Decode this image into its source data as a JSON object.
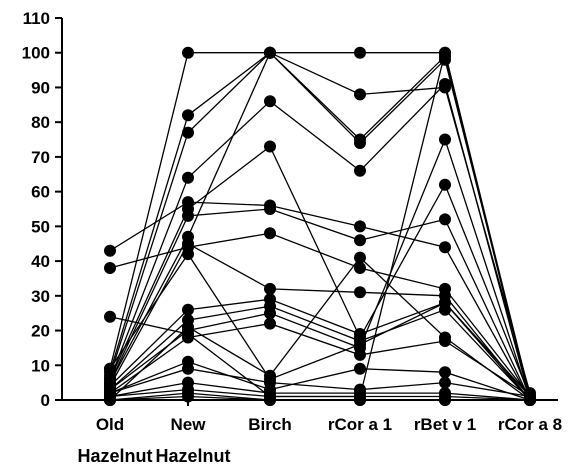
{
  "chart_data": {
    "type": "line",
    "title": "",
    "xlabel": "",
    "ylabel": "",
    "categories": [
      "Old",
      "New",
      "Birch",
      "rCor a 1",
      "rBet v 1",
      "rCor a 8"
    ],
    "category_sublabels": [
      "Hazelnut",
      "Hazelnut",
      "",
      "",
      "",
      ""
    ],
    "ylim": [
      0,
      110
    ],
    "yticks": [
      0,
      10,
      20,
      30,
      40,
      50,
      60,
      70,
      80,
      90,
      100,
      110
    ],
    "grid": false,
    "legend": "none",
    "line_color": "#000000",
    "marker": "filled-circle",
    "series": [
      {
        "values": [
          43,
          57,
          56,
          50,
          44,
          0
        ]
      },
      {
        "values": [
          38,
          44,
          48,
          38,
          32,
          1
        ]
      },
      {
        "values": [
          24,
          19,
          1,
          1,
          100,
          1
        ]
      },
      {
        "values": [
          9,
          100,
          100,
          100,
          100,
          0
        ]
      },
      {
        "values": [
          8,
          82,
          100,
          75,
          99,
          0
        ]
      },
      {
        "values": [
          7,
          77,
          100,
          74,
          98,
          1
        ]
      },
      {
        "values": [
          6,
          64,
          86,
          66,
          91,
          0
        ]
      },
      {
        "values": [
          6,
          55,
          73,
          18,
          62,
          1
        ]
      },
      {
        "values": [
          5,
          53,
          55,
          46,
          52,
          0
        ]
      },
      {
        "values": [
          5,
          47,
          100,
          88,
          90,
          2
        ]
      },
      {
        "values": [
          4,
          45,
          32,
          31,
          30,
          0
        ]
      },
      {
        "values": [
          4,
          26,
          29,
          19,
          28,
          1
        ]
      },
      {
        "values": [
          3,
          23,
          27,
          17,
          26,
          0
        ]
      },
      {
        "values": [
          3,
          20,
          25,
          15,
          75,
          0
        ]
      },
      {
        "values": [
          2,
          18,
          22,
          13,
          17,
          1
        ]
      },
      {
        "values": [
          2,
          11,
          3,
          9,
          8,
          0
        ]
      },
      {
        "values": [
          2,
          9,
          5,
          3,
          5,
          1
        ]
      },
      {
        "values": [
          1,
          5,
          2,
          2,
          2,
          0
        ]
      },
      {
        "values": [
          1,
          3,
          1,
          1,
          1,
          0
        ]
      },
      {
        "values": [
          0,
          2,
          0,
          0,
          0,
          0
        ]
      },
      {
        "values": [
          0,
          1,
          0,
          0,
          0,
          0
        ]
      },
      {
        "values": [
          0,
          21,
          7,
          41,
          18,
          0
        ]
      },
      {
        "values": [
          9,
          42,
          6,
          16,
          28,
          0
        ]
      }
    ]
  }
}
